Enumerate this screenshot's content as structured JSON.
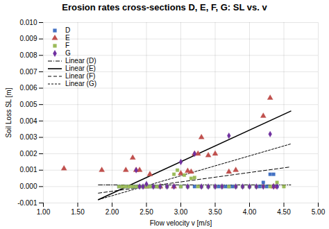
{
  "chart_data": {
    "type": "scatter",
    "title": "Erosion rates cross-sections D, E, F, G: SL vs. v",
    "xlabel": "Flow velocity v [m/s]",
    "ylabel": "Soil Loss SL [m]",
    "xlim": [
      1.0,
      5.0
    ],
    "ylim": [
      -0.001,
      0.01
    ],
    "xticks": [
      {
        "value": 1.0,
        "label": "1.00"
      },
      {
        "value": 1.5,
        "label": "1.50"
      },
      {
        "value": 2.0,
        "label": "2.00"
      },
      {
        "value": 2.5,
        "label": "2.50"
      },
      {
        "value": 3.0,
        "label": "3.00"
      },
      {
        "value": 3.5,
        "label": "3.50"
      },
      {
        "value": 4.0,
        "label": "4.00"
      },
      {
        "value": 4.5,
        "label": "4.50"
      },
      {
        "value": 5.0,
        "label": "5.00"
      }
    ],
    "yticks": [
      -0.001,
      {
        "value": 0,
        "label": "0.000"
      },
      0.001,
      0.002,
      0.003,
      0.004,
      0.005,
      0.006,
      0.007,
      0.008,
      0.009,
      {
        "value": 0.01,
        "label": "0.010"
      }
    ],
    "grid": true,
    "legend": "upper left",
    "series": [
      {
        "name": "D",
        "type": "scatter",
        "color": "#4472C4",
        "marker": "square",
        "x": [
          2.1,
          2.2,
          2.3,
          2.35,
          2.4,
          2.45,
          2.5,
          2.55,
          2.6,
          2.65,
          2.7,
          2.8,
          2.9,
          3.0,
          3.1,
          3.2,
          3.3,
          3.4,
          3.5,
          3.55,
          3.6,
          3.65,
          3.7,
          3.75,
          3.8,
          3.9,
          4.0,
          4.1,
          4.15,
          4.2,
          4.25,
          4.3,
          4.35,
          4.4
        ],
        "values": [
          0.0,
          0.0,
          0.0,
          0.0,
          0.0,
          0.0,
          0.0,
          0.0,
          0.0,
          0.0,
          0.0,
          0.0,
          0.0,
          0.0,
          0.0,
          0.0,
          0.0,
          0.0,
          0.0,
          0.0,
          0.0,
          0.0,
          0.0,
          0.0,
          0.0,
          0.0,
          0.0,
          0.0,
          0.0,
          0.00025,
          0.0,
          0.00075,
          0.00075,
          0.0
        ]
      },
      {
        "name": "E",
        "type": "scatter",
        "color": "#C0504D",
        "marker": "triangle",
        "x": [
          1.3,
          1.85,
          2.2,
          2.3,
          2.35,
          2.4,
          2.5,
          2.55,
          2.7,
          2.9,
          3.0,
          3.1,
          3.15,
          3.2,
          3.25,
          3.3,
          3.4,
          3.5,
          3.7,
          3.8,
          4.2,
          4.3,
          4.35
        ],
        "values": [
          0.0011,
          0.001,
          0.001,
          0.00175,
          0.001,
          0.001,
          0.0,
          0.00075,
          0.0,
          0.0,
          0.0008,
          0.00095,
          0.0009,
          0.002,
          0.002,
          0.003,
          0.0019,
          0.002,
          0.0009,
          0.001,
          0.0043,
          0.0054,
          0.0
        ]
      },
      {
        "name": "F",
        "type": "scatter",
        "color": "#9BBB59",
        "marker": "square",
        "x": [
          2.1,
          2.15,
          2.2,
          2.25,
          2.3,
          2.35,
          2.4,
          2.45,
          2.5,
          2.55,
          2.6,
          2.65,
          2.7,
          2.8,
          2.9,
          2.95,
          3.0,
          3.05,
          3.1,
          3.15,
          3.2,
          3.25,
          3.3,
          3.4,
          3.5,
          3.6,
          3.7,
          3.8,
          3.9,
          4.0,
          4.1,
          4.2,
          4.3,
          4.4,
          4.5
        ],
        "values": [
          0.0,
          0.0,
          0.0,
          0.0,
          0.0,
          0.0,
          0.0,
          0.0,
          0.0,
          0.0,
          0.0,
          0.0,
          0.0,
          0.0,
          0.00075,
          0.001,
          0.0,
          0.0007,
          0.0,
          0.0005,
          0.00055,
          0.0,
          0.0,
          0.0,
          0.0,
          0.0,
          0.0,
          0.0,
          0.0,
          0.0,
          0.0,
          0.0,
          0.0,
          0.00025,
          0.0
        ]
      },
      {
        "name": "G",
        "type": "scatter",
        "color": "#7030A0",
        "marker": "diamond",
        "x": [
          2.35,
          2.4,
          2.45,
          2.5,
          2.6,
          2.7,
          2.8,
          2.9,
          3.0,
          3.1,
          3.2,
          3.3,
          3.4,
          3.5,
          3.6,
          3.7,
          3.8,
          3.9,
          4.0,
          4.1,
          4.2,
          4.3,
          4.35,
          4.4
        ],
        "values": [
          0.001,
          0.0,
          0.0,
          0.00015,
          0.0,
          0.0,
          0.0,
          0.0,
          0.0015,
          0.0,
          0.002,
          0.0,
          0.0,
          0.0,
          0.0,
          0.0031,
          0.0,
          0.0,
          0.0,
          0.0,
          0.0,
          0.0032,
          0.0,
          0.0
        ]
      },
      {
        "name": "Linear (D)",
        "type": "line",
        "color": "#000000",
        "line_style": "dashdot",
        "x": [
          1.8,
          4.6
        ],
        "values": [
          0.0001,
          0.0001
        ]
      },
      {
        "name": "Linear (E)",
        "type": "line",
        "color": "#000000",
        "line_style": "solid",
        "x": [
          1.8,
          4.6
        ],
        "values": [
          -0.0008,
          0.0046
        ]
      },
      {
        "name": "Linear (F)",
        "type": "line",
        "color": "#000000",
        "line_style": "dashed",
        "x": [
          1.8,
          4.6
        ],
        "values": [
          -0.0004,
          0.0012
        ]
      },
      {
        "name": "Linear (G)",
        "type": "line",
        "color": "#000000",
        "line_style": "shortdash",
        "x": [
          1.8,
          4.6
        ],
        "values": [
          -0.0008,
          0.0026
        ]
      }
    ]
  }
}
